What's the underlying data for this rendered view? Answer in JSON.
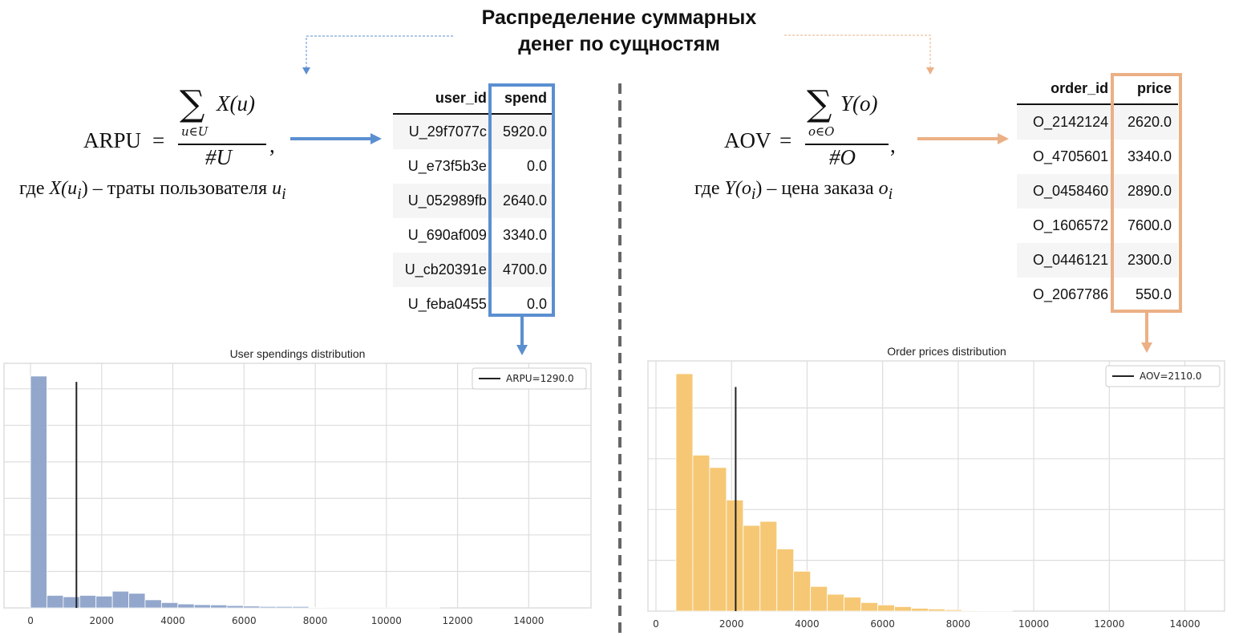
{
  "title": {
    "line1": "Распределение суммарных",
    "line2": "денег по сущностям"
  },
  "colors": {
    "blue": "#5b8fd0",
    "orange": "#ebb085",
    "blue_bar": "#8da2c9",
    "orange_bar": "#f5c56e",
    "divider": "#666666"
  },
  "left": {
    "formula": {
      "lhs": "ARPU",
      "eq": "=",
      "sum": "∑",
      "term": "X(u)",
      "sub": "u∈U",
      "den": "#U",
      "comma": ","
    },
    "where": {
      "prefix": "где ",
      "expr": "X(u",
      "expr_sub": "i",
      "expr_close": ")",
      "text": " – траты пользователя ",
      "var": "u",
      "var_sub": "i"
    },
    "table": {
      "headers": [
        "user_id",
        "spend"
      ],
      "rows": [
        [
          "U_29f7077c",
          "5920.0"
        ],
        [
          "U_e73f5b3e",
          "0.0"
        ],
        [
          "U_052989fb",
          "2640.0"
        ],
        [
          "U_690af009",
          "3340.0"
        ],
        [
          "U_cb20391e",
          "4700.0"
        ],
        [
          "U_feba0455",
          "0.0"
        ]
      ]
    }
  },
  "right": {
    "formula": {
      "lhs": "AOV",
      "eq": "=",
      "sum": "∑",
      "term": "Y(o)",
      "sub": "o∈O",
      "den": "#O",
      "comma": ","
    },
    "where": {
      "prefix": "где ",
      "expr": "Y(o",
      "expr_sub": "i",
      "expr_close": ")",
      "text": " – цена заказа ",
      "var": "o",
      "var_sub": "i"
    },
    "table": {
      "headers": [
        "order_id",
        "price"
      ],
      "rows": [
        [
          "O_2142124",
          "2620.0"
        ],
        [
          "O_4705601",
          "3340.0"
        ],
        [
          "O_0458460",
          "2890.0"
        ],
        [
          "O_1606572",
          "7600.0"
        ],
        [
          "O_0446121",
          "2300.0"
        ],
        [
          "O_2067786",
          "550.0"
        ]
      ]
    }
  },
  "chart_data": [
    {
      "type": "bar",
      "title": "User spendings distribution",
      "xlabel": "",
      "ylabel": "",
      "bin_start": 0,
      "bin_width": 460,
      "values": [
        100,
        5.4,
        4.8,
        5.4,
        5.1,
        7.2,
        6.3,
        3.5,
        2.3,
        1.7,
        1.4,
        1.3,
        1.0,
        0.8,
        0.6,
        0.6,
        0.6,
        0.2,
        0.1,
        0.1,
        0.1,
        0.1,
        0.1,
        0.1,
        0.1
      ],
      "xlim": [
        -745,
        15750
      ],
      "ylim": [
        0,
        105.5
      ],
      "xticks": [
        0,
        2000,
        4000,
        6000,
        8000,
        10000,
        12000,
        14000
      ],
      "ygrid_step": 15.75,
      "grid": true,
      "vline": {
        "x": 1290,
        "top": 97.5,
        "label": "ARPU=1290.0"
      },
      "legend": "top-right",
      "color": "#8da2c9"
    },
    {
      "type": "bar",
      "title": "Order prices distribution",
      "xlabel": "",
      "ylabel": "",
      "bin_start": 530,
      "bin_width": 445,
      "values": [
        100,
        65.7,
        60.5,
        46.8,
        36.1,
        37.8,
        26.2,
        16.8,
        10.4,
        7.1,
        5.9,
        3.6,
        2.6,
        1.9,
        1.2,
        0.9,
        0.6,
        0.3,
        0.2,
        0.2
      ],
      "xlim": [
        -212,
        15050
      ],
      "ylim": [
        0,
        105.4
      ],
      "xticks": [
        0,
        2000,
        4000,
        6000,
        8000,
        10000,
        12000,
        14000
      ],
      "ygrid_step": 21.4,
      "grid": true,
      "vline": {
        "x": 2110,
        "top": 94.4,
        "label": "AOV=2110.0"
      },
      "legend": "top-right",
      "color": "#f5c56e"
    }
  ]
}
